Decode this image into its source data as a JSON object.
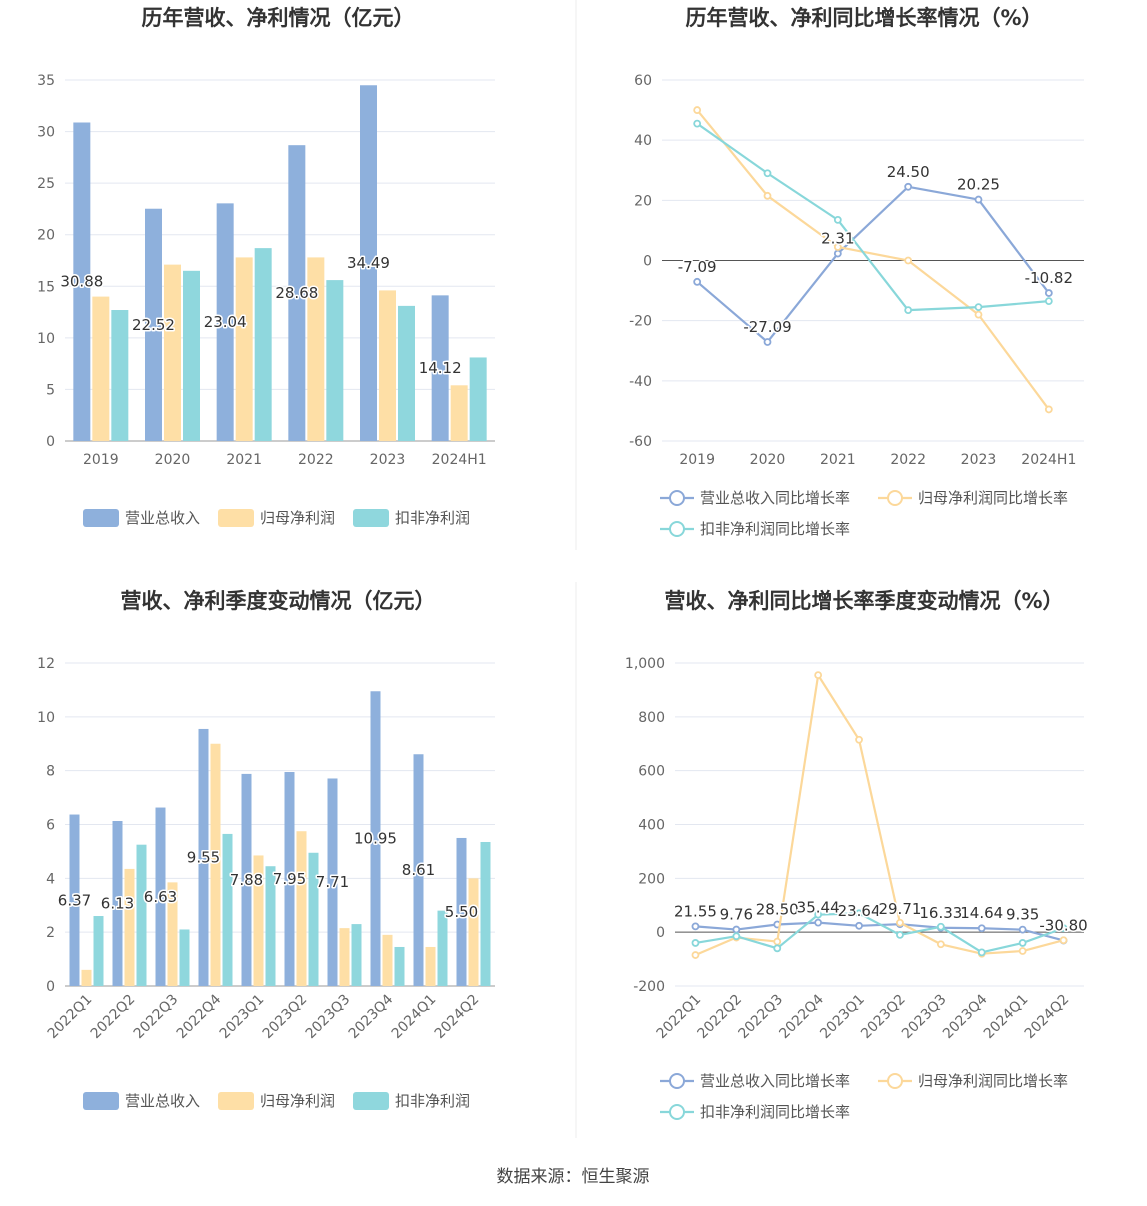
{
  "colors": {
    "revenue": "#8eb0dc",
    "net_profit": "#fedfa6",
    "deducted_profit": "#8fd7dd",
    "revenue_line": "#8ba8d8",
    "net_profit_line": "#fcd89a",
    "deducted_profit_line": "#88d7da",
    "grid": "#e3e7f0",
    "zero_axis": "#555555"
  },
  "footer": "数据来源：恒生聚源",
  "chart_data": [
    {
      "id": "annual_values",
      "type": "bar",
      "title": "历年营收、净利情况（亿元）",
      "categories": [
        "2019",
        "2020",
        "2021",
        "2022",
        "2023",
        "2024H1"
      ],
      "ylim": [
        0,
        35
      ],
      "yticks": [
        "0",
        "5",
        "10",
        "15",
        "20",
        "25",
        "30",
        "35"
      ],
      "grid": true,
      "legend_position": "bottom",
      "series": [
        {
          "name": "营业总收入",
          "values": [
            30.88,
            22.52,
            23.04,
            28.68,
            34.49,
            14.12
          ],
          "labels": [
            "30.88",
            "22.52",
            "23.04",
            "28.68",
            "34.49",
            "14.12"
          ]
        },
        {
          "name": "归母净利润",
          "values": [
            14.0,
            17.1,
            17.8,
            17.8,
            14.6,
            5.4
          ]
        },
        {
          "name": "扣非净利润",
          "values": [
            12.7,
            16.5,
            18.7,
            15.6,
            13.1,
            8.1
          ]
        }
      ]
    },
    {
      "id": "annual_growth",
      "type": "line",
      "title": "历年营收、净利同比增长率情况（%）",
      "categories": [
        "2019",
        "2020",
        "2021",
        "2022",
        "2023",
        "2024H1"
      ],
      "ylim": [
        -60,
        60
      ],
      "yticks": [
        "-60",
        "-40",
        "-20",
        "0",
        "20",
        "40",
        "60"
      ],
      "grid": true,
      "legend_position": "bottom",
      "series": [
        {
          "name": "营业总收入同比增长率",
          "values": [
            -7.09,
            -27.09,
            2.31,
            24.5,
            20.25,
            -10.82
          ],
          "labels": [
            "-7.09",
            "-27.09",
            "2.31",
            "24.50",
            "20.25",
            "-10.82"
          ]
        },
        {
          "name": "归母净利润同比增长率",
          "values": [
            50.0,
            21.5,
            4.5,
            0.0,
            -18.0,
            -49.5
          ]
        },
        {
          "name": "扣非净利润同比增长率",
          "values": [
            45.5,
            29.0,
            13.5,
            -16.5,
            -15.5,
            -13.5
          ]
        }
      ]
    },
    {
      "id": "quarterly_values",
      "type": "bar",
      "title": "营收、净利季度变动情况（亿元）",
      "categories": [
        "2022Q1",
        "2022Q2",
        "2022Q3",
        "2022Q4",
        "2023Q1",
        "2023Q2",
        "2023Q3",
        "2023Q4",
        "2024Q1",
        "2024Q2"
      ],
      "ylim": [
        0,
        12
      ],
      "yticks": [
        "0",
        "2",
        "4",
        "6",
        "8",
        "10",
        "12"
      ],
      "grid": true,
      "legend_position": "bottom",
      "series": [
        {
          "name": "营业总收入",
          "values": [
            6.37,
            6.13,
            6.63,
            9.55,
            7.88,
            7.95,
            7.71,
            10.95,
            8.61,
            5.5
          ],
          "labels": [
            "6.37",
            "6.13",
            "6.63",
            "9.55",
            "7.88",
            "7.95",
            "7.71",
            "10.95",
            "8.61",
            "5.50"
          ]
        },
        {
          "name": "归母净利润",
          "values": [
            0.6,
            4.35,
            3.85,
            9.0,
            4.85,
            5.75,
            2.15,
            1.9,
            1.45,
            4.0
          ]
        },
        {
          "name": "扣非净利润",
          "values": [
            2.6,
            5.25,
            2.1,
            5.65,
            4.45,
            4.95,
            2.3,
            1.45,
            2.8,
            5.35
          ]
        }
      ]
    },
    {
      "id": "quarterly_growth",
      "type": "line",
      "title": "营收、净利同比增长率季度变动情况（%）",
      "categories": [
        "2022Q1",
        "2022Q2",
        "2022Q3",
        "2022Q4",
        "2023Q1",
        "2023Q2",
        "2023Q3",
        "2023Q4",
        "2024Q1",
        "2024Q2"
      ],
      "ylim": [
        -200,
        1000
      ],
      "yticks": [
        "-200",
        "0",
        "200",
        "400",
        "600",
        "800",
        "1,000"
      ],
      "grid": true,
      "legend_position": "bottom",
      "series": [
        {
          "name": "营业总收入同比增长率",
          "values": [
            21.55,
            9.76,
            28.5,
            35.44,
            23.64,
            29.71,
            16.33,
            14.64,
            9.35,
            -30.8
          ],
          "labels": [
            "21.55",
            "9.76",
            "28.50",
            "35.44",
            "23.64",
            "29.71",
            "16.33",
            "14.64",
            "9.35",
            "-30.80"
          ]
        },
        {
          "name": "归母净利润同比增长率",
          "values": [
            -85,
            -20,
            -35,
            955,
            715,
            35,
            -45,
            -80,
            -70,
            -30
          ]
        },
        {
          "name": "扣非净利润同比增长率",
          "values": [
            -40,
            -15,
            -60,
            65,
            70,
            -10,
            20,
            -75,
            -40,
            15
          ]
        }
      ]
    }
  ]
}
